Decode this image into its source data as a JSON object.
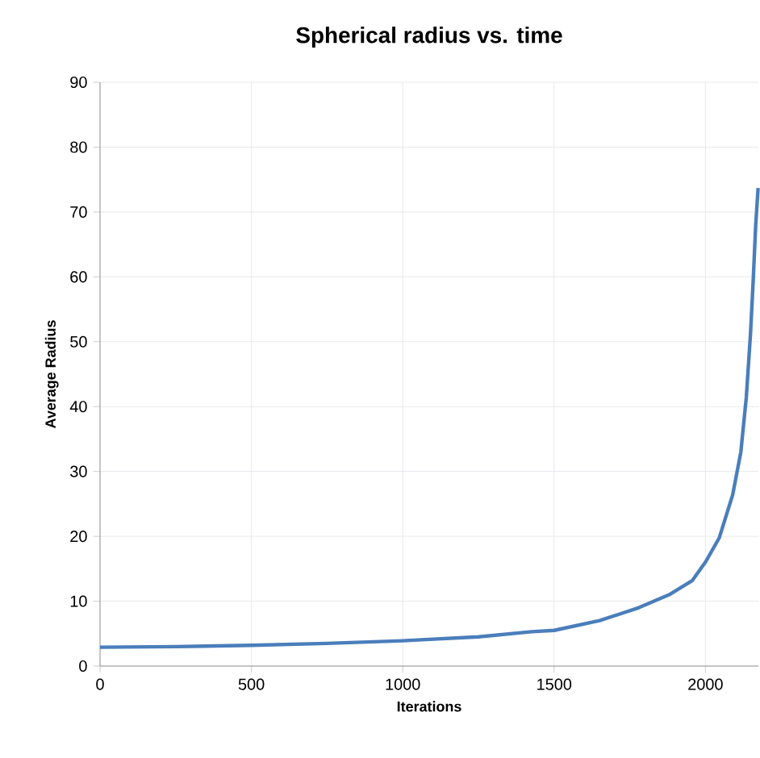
{
  "chart_data": {
    "type": "line",
    "title": "Spherical radius vs. time",
    "xlabel": "Iterations",
    "ylabel": "Average Radius",
    "xlim": [
      0,
      2175
    ],
    "ylim": [
      0,
      90
    ],
    "xticks": [
      0,
      500,
      1000,
      1500,
      2000
    ],
    "yticks": [
      0,
      10,
      20,
      30,
      40,
      50,
      60,
      70,
      80,
      90
    ],
    "grid": true,
    "marker": "none",
    "line_style": "solid",
    "series": [
      {
        "color": "#4a7ebb",
        "x": [
          0,
          250,
          500,
          750,
          1000,
          1250,
          1426,
          1500,
          1650,
          1780,
          1880,
          1957,
          2001,
          2046,
          2090,
          2117,
          2135,
          2149,
          2158,
          2166,
          2174
        ],
        "values": [
          2.9,
          3.0,
          3.2,
          3.5,
          3.9,
          4.5,
          5.3,
          5.5,
          7.0,
          9.0,
          11.0,
          13.2,
          16.1,
          19.8,
          26.4,
          33,
          41.4,
          51.3,
          59.6,
          67.9,
          73.7
        ]
      }
    ]
  }
}
